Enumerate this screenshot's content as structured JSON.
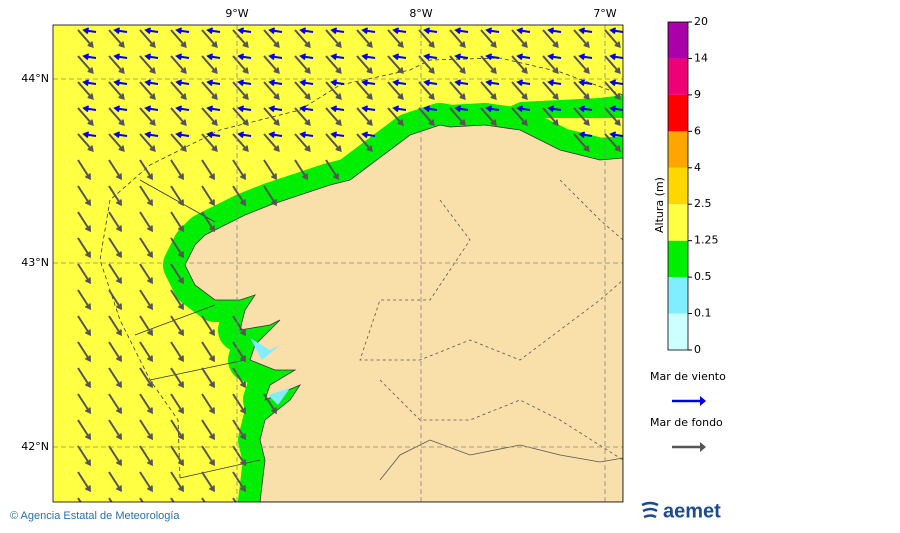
{
  "map": {
    "lon_labels": [
      "9°W",
      "8°W",
      "7°W"
    ],
    "lat_labels": [
      "44°N",
      "43°N",
      "42°N"
    ]
  },
  "colorbar": {
    "title": "Altura (m)",
    "levels": [
      0,
      0.1,
      0.5,
      1.25,
      2.5,
      4,
      6,
      9,
      14,
      20
    ],
    "colors": [
      "#ccffff",
      "#80eeff",
      "#00ee00",
      "#ffff44",
      "#ffd700",
      "#ffa500",
      "#ff0000",
      "#ee0077",
      "#aa00aa"
    ]
  },
  "legend": [
    {
      "label": "Mar de viento",
      "color": "#0000ee"
    },
    {
      "label": "Mar de fondo",
      "color": "#555555"
    }
  ],
  "footer": {
    "credit": "© Agencia Estatal de Meteorología",
    "logo": "aemet"
  }
}
